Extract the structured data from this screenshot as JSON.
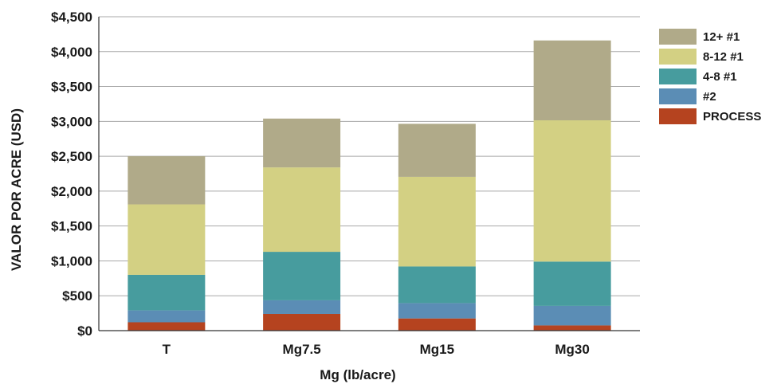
{
  "chart_data": {
    "type": "bar",
    "stacked": true,
    "title": "",
    "xlabel": "Mg (lb/acre)",
    "ylabel": "VALOR POR ACRE (USD)",
    "ylim": [
      0,
      4500
    ],
    "y_ticks": [
      0,
      500,
      1000,
      1500,
      2000,
      2500,
      3000,
      3500,
      4000,
      4500
    ],
    "y_tick_labels": [
      "$0",
      "$500",
      "$1,000",
      "$1,500",
      "$2,000",
      "$2,500",
      "$3,000",
      "$3,500",
      "$4,000",
      "$4,500"
    ],
    "categories": [
      "T",
      "Mg7.5",
      "Mg15",
      "Mg30"
    ],
    "grid": true,
    "legend_position": "top-right",
    "series": [
      {
        "name": "PROCESS",
        "color": "#b5431f",
        "values": [
          120,
          240,
          175,
          75
        ]
      },
      {
        "name": "#2",
        "color": "#5b8db5",
        "values": [
          170,
          195,
          220,
          280
        ]
      },
      {
        "name": "4-8 #1",
        "color": "#479c9e",
        "values": [
          510,
          695,
          525,
          635
        ]
      },
      {
        "name": "8-12 #1",
        "color": "#d3d083",
        "values": [
          1010,
          1210,
          1285,
          2025
        ]
      },
      {
        "name": "12+ #1",
        "color": "#b0aa89",
        "values": [
          690,
          700,
          760,
          1145
        ]
      }
    ],
    "legend_order": [
      "12+ #1",
      "8-12 #1",
      "4-8 #1",
      "#2",
      "PROCESS"
    ]
  }
}
